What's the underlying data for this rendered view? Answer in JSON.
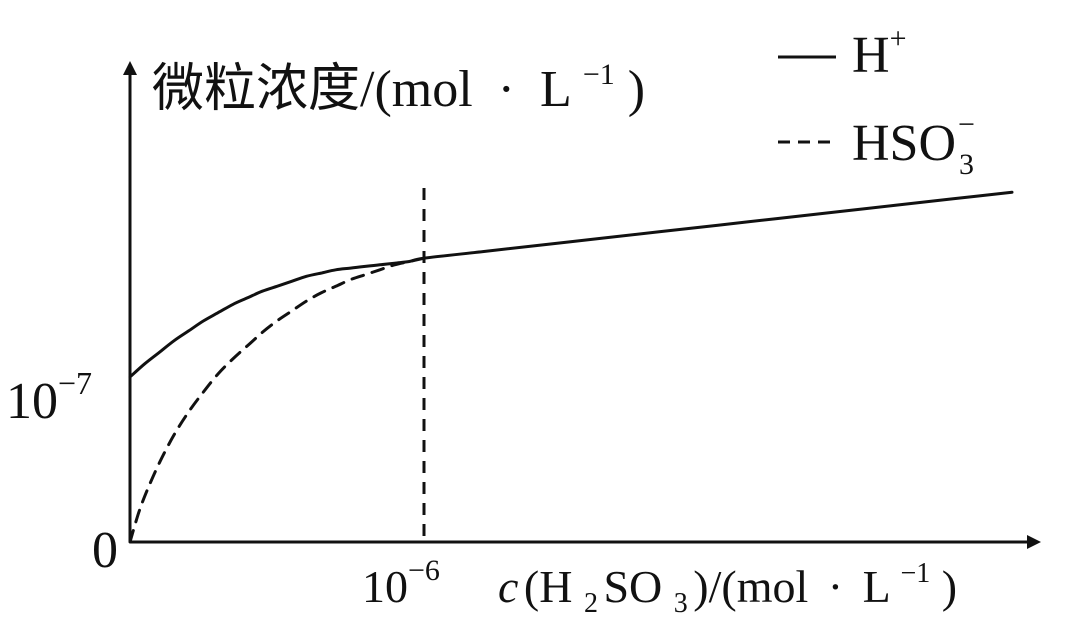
{
  "chart_data": {
    "type": "line",
    "ylabel_main": "微粒浓度/(mol",
    "ylabel_dot": "·",
    "ylabel_unit": "L",
    "ylabel_exp": "−1",
    "ylabel_close": ")",
    "xlabel_c": "c",
    "xlabel_open": "(H",
    "xlabel_sub2": "2",
    "xlabel_so": "SO",
    "xlabel_sub3": "3",
    "xlabel_mid": ")/(mol",
    "xlabel_dot": "·",
    "xlabel_unit": "L",
    "xlabel_exp": "−1",
    "xlabel_close": ")",
    "xtick_base": "10",
    "xtick_exp": "−6",
    "ytick_base": "10",
    "ytick_exp": "−7",
    "origin_label": "0",
    "legend": [
      {
        "label": "H",
        "sup": "+",
        "sub": "",
        "style": "solid"
      },
      {
        "label": "HSO",
        "sup": "−",
        "sub": "3",
        "style": "dashed"
      }
    ],
    "series": [
      {
        "name": "H+",
        "style": "solid",
        "x": [
          0,
          0.05,
          0.1,
          0.15,
          0.2,
          0.25,
          0.3,
          0.35,
          0.4,
          0.45,
          0.5,
          0.55,
          0.6,
          0.65,
          0.7,
          0.75,
          0.8,
          0.85,
          0.9,
          0.95,
          1,
          1.2,
          1.4,
          1.6,
          1.8,
          2,
          2.2,
          2.4,
          2.6,
          2.8,
          3
        ],
        "y": [
          1,
          1.08,
          1.15,
          1.22,
          1.28,
          1.34,
          1.39,
          1.44,
          1.48,
          1.52,
          1.55,
          1.58,
          1.61,
          1.63,
          1.65,
          1.66,
          1.67,
          1.68,
          1.69,
          1.7,
          1.72,
          1.76,
          1.8,
          1.84,
          1.88,
          1.92,
          1.96,
          2.0,
          2.04,
          2.08,
          2.12
        ]
      },
      {
        "name": "HSO3-",
        "style": "dashed",
        "x": [
          0,
          0.03,
          0.06,
          0.1,
          0.15,
          0.2,
          0.25,
          0.3,
          0.35,
          0.4,
          0.45,
          0.5,
          0.55,
          0.6,
          0.65,
          0.7,
          0.75,
          0.8,
          0.85,
          0.9,
          0.95,
          1
        ],
        "y": [
          0,
          0.18,
          0.32,
          0.48,
          0.65,
          0.79,
          0.91,
          1.02,
          1.11,
          1.19,
          1.27,
          1.34,
          1.4,
          1.46,
          1.51,
          1.55,
          1.59,
          1.62,
          1.65,
          1.68,
          1.7,
          1.72
        ]
      }
    ],
    "vline": {
      "x": 1,
      "style": "dashed"
    }
  }
}
